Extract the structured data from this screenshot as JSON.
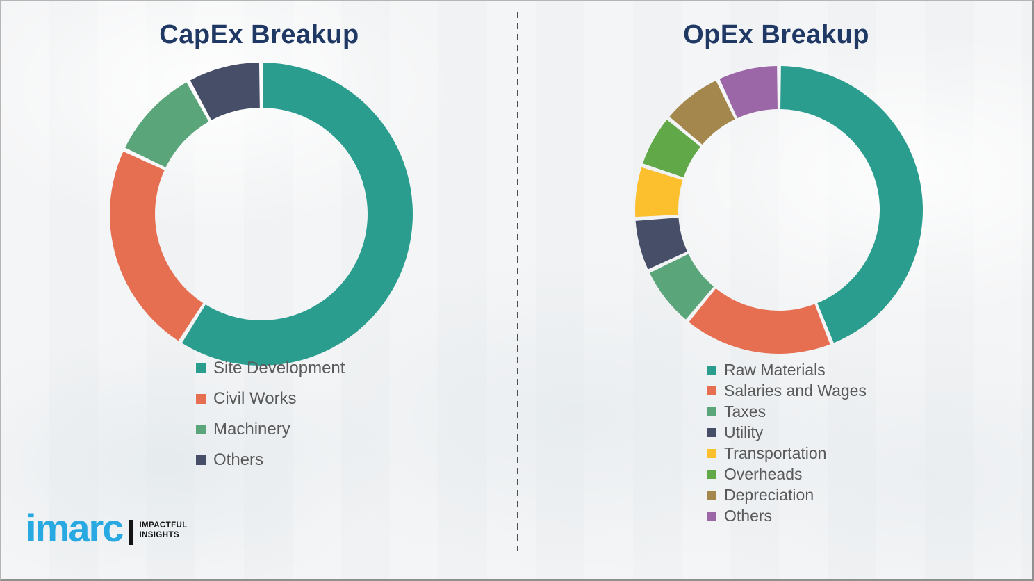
{
  "canvas": {
    "background_color": "#f2f3f4",
    "divider_color": "#4f4f4f"
  },
  "titles_color": "#1f3864",
  "legend_text_color": "#595959",
  "chart_data": [
    {
      "type": "pie",
      "subtype": "donut",
      "title": "CapEx Breakup",
      "categories": [
        "Site Development",
        "Civil Works",
        "Machinery",
        "Others"
      ],
      "values": [
        59,
        23,
        10,
        8
      ],
      "colors": [
        "#2a9d8f",
        "#e76f51",
        "#5aa579",
        "#474f68"
      ],
      "start_angle_deg": 0,
      "direction": "clockwise",
      "data_labels": false,
      "legend_position": "below-chart-left"
    },
    {
      "type": "pie",
      "subtype": "donut",
      "title": "OpEx Breakup",
      "categories": [
        "Raw Materials",
        "Salaries and Wages",
        "Taxes",
        "Utility",
        "Transportation",
        "Overheads",
        "Depreciation",
        "Others"
      ],
      "values": [
        44,
        17,
        7,
        6,
        6,
        6,
        7,
        7
      ],
      "colors": [
        "#2a9d8f",
        "#e76f51",
        "#5aa579",
        "#474f68",
        "#fcbf2d",
        "#61a849",
        "#a3874c",
        "#9c67a7"
      ],
      "start_angle_deg": 0,
      "direction": "clockwise",
      "data_labels": false,
      "legend_position": "below-chart-left"
    }
  ],
  "logo": {
    "brand": "imarc",
    "brand_color": "#29a9e1",
    "tagline_line1": "IMPACTFUL",
    "tagline_line2": "INSIGHTS"
  }
}
